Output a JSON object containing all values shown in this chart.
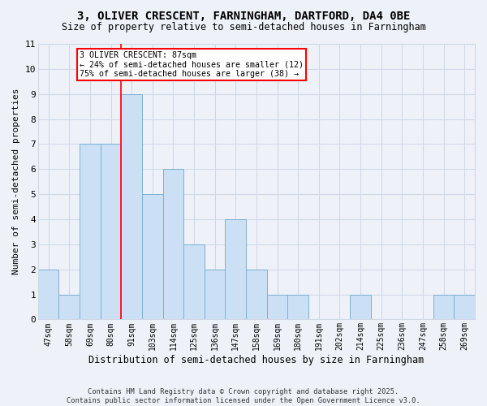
{
  "title_line1": "3, OLIVER CRESCENT, FARNINGHAM, DARTFORD, DA4 0BE",
  "title_line2": "Size of property relative to semi-detached houses in Farningham",
  "xlabel": "Distribution of semi-detached houses by size in Farningham",
  "ylabel": "Number of semi-detached properties",
  "categories": [
    "47sqm",
    "58sqm",
    "69sqm",
    "80sqm",
    "91sqm",
    "103sqm",
    "114sqm",
    "125sqm",
    "136sqm",
    "147sqm",
    "158sqm",
    "169sqm",
    "180sqm",
    "191sqm",
    "202sqm",
    "214sqm",
    "225sqm",
    "236sqm",
    "247sqm",
    "258sqm",
    "269sqm"
  ],
  "values": [
    2,
    1,
    7,
    7,
    9,
    5,
    6,
    3,
    2,
    4,
    2,
    1,
    1,
    0,
    0,
    1,
    0,
    0,
    0,
    1,
    1
  ],
  "bar_color": "#cce0f5",
  "bar_edge_color": "#7ab0d4",
  "red_line_x": 3.5,
  "annotation_text": "3 OLIVER CRESCENT: 87sqm\n← 24% of semi-detached houses are smaller (12)\n75% of semi-detached houses are larger (38) →",
  "annotation_box_color": "white",
  "annotation_box_edge": "red",
  "footer_text": "Contains HM Land Registry data © Crown copyright and database right 2025.\nContains public sector information licensed under the Open Government Licence v3.0.",
  "ylim": [
    0,
    11
  ],
  "background_color": "#eef2f8",
  "grid_color": "#d0d8e8"
}
